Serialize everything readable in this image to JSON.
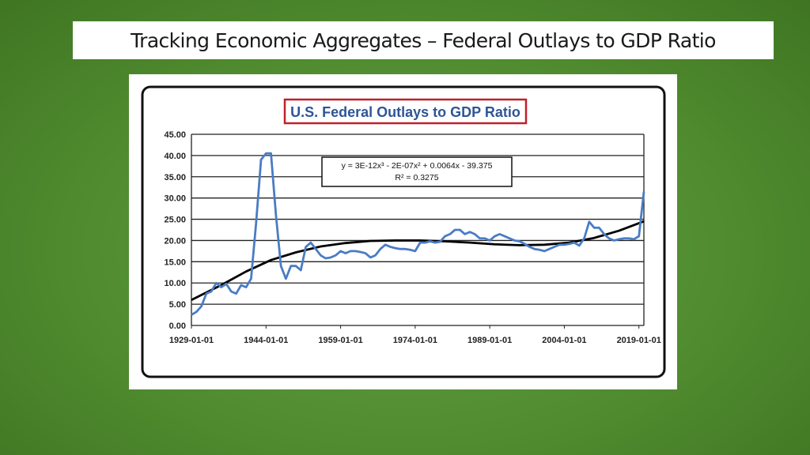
{
  "slide": {
    "title": "Tracking Economic Aggregates – Federal Outlays to GDP Ratio"
  },
  "colors": {
    "background": "#4f8a2e",
    "series_line": "#4a7cc4",
    "trend_line": "#000000",
    "chart_title_border": "#c0202a",
    "chart_title_text": "#2e5597"
  },
  "chart_data": {
    "type": "line",
    "title": "U.S. Federal Outlays to GDP Ratio",
    "xlabel": "",
    "ylabel": "",
    "x_tick_labels": [
      "1929-01-01",
      "1944-01-01",
      "1959-01-01",
      "1974-01-01",
      "1989-01-01",
      "2004-01-01",
      "2019-01-01"
    ],
    "y_tick_labels": [
      "0.00",
      "5.00",
      "10.00",
      "15.00",
      "20.00",
      "25.00",
      "30.00",
      "35.00",
      "40.00",
      "45.00"
    ],
    "xlim": [
      1929,
      2020
    ],
    "ylim": [
      0,
      45
    ],
    "grid": "horizontal",
    "legend": "none",
    "trendline": {
      "label_line1": "y = 3E-12x³ - 2E-07x² + 0.0064x - 39.375",
      "label_line2": "R² = 0.3275",
      "x": [
        1929,
        1935,
        1940,
        1945,
        1950,
        1955,
        1960,
        1965,
        1970,
        1975,
        1980,
        1985,
        1990,
        1995,
        2000,
        2005,
        2010,
        2015,
        2020
      ],
      "y": [
        6,
        9.5,
        12.7,
        15.4,
        17.2,
        18.6,
        19.4,
        19.9,
        20.0,
        20.0,
        19.8,
        19.5,
        19.1,
        18.9,
        19.0,
        19.5,
        20.6,
        22.3,
        24.5
      ]
    },
    "series": [
      {
        "x": [
          1929,
          1930,
          1931,
          1932,
          1933,
          1934,
          1935,
          1936,
          1937,
          1938,
          1939,
          1940,
          1941,
          1942,
          1943,
          1944,
          1945,
          1946,
          1947,
          1948,
          1949,
          1950,
          1951,
          1952,
          1953,
          1954,
          1955,
          1956,
          1957,
          1958,
          1959,
          1960,
          1961,
          1962,
          1963,
          1964,
          1965,
          1966,
          1967,
          1968,
          1969,
          1970,
          1971,
          1972,
          1973,
          1974,
          1975,
          1976,
          1977,
          1978,
          1979,
          1980,
          1981,
          1982,
          1983,
          1984,
          1985,
          1986,
          1987,
          1988,
          1989,
          1990,
          1991,
          1992,
          1993,
          1994,
          1995,
          1996,
          1997,
          1998,
          1999,
          2000,
          2001,
          2002,
          2003,
          2004,
          2005,
          2006,
          2007,
          2008,
          2009,
          2010,
          2011,
          2012,
          2013,
          2014,
          2015,
          2016,
          2017,
          2018,
          2019,
          2020
        ],
        "y": [
          2.5,
          3.2,
          4.5,
          7.5,
          8.0,
          10.0,
          9.0,
          9.8,
          8.0,
          7.5,
          9.5,
          9.0,
          11.0,
          24.0,
          39.0,
          40.5,
          40.5,
          26.0,
          14.0,
          11.0,
          14.0,
          14.0,
          13.0,
          18.5,
          19.5,
          18.0,
          16.5,
          15.8,
          16.0,
          16.5,
          17.5,
          17.0,
          17.5,
          17.5,
          17.3,
          17.0,
          16.0,
          16.5,
          18.0,
          19.0,
          18.5,
          18.2,
          18.0,
          18.0,
          17.8,
          17.5,
          19.5,
          19.5,
          19.8,
          19.5,
          19.7,
          21.0,
          21.5,
          22.5,
          22.5,
          21.5,
          22.0,
          21.5,
          20.5,
          20.5,
          20.0,
          21.0,
          21.5,
          21.0,
          20.5,
          20.0,
          19.8,
          19.2,
          18.5,
          18.0,
          17.8,
          17.5,
          18.0,
          18.5,
          19.0,
          19.0,
          19.2,
          19.5,
          18.8,
          20.5,
          24.4,
          23.0,
          23.0,
          21.5,
          20.5,
          20.0,
          20.3,
          20.5,
          20.5,
          20.3,
          21.0,
          31.5
        ]
      }
    ]
  }
}
